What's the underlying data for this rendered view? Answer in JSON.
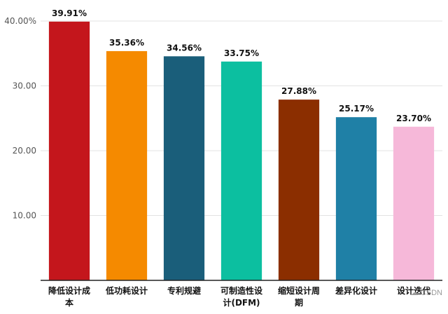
{
  "chart_data": {
    "type": "bar",
    "categories": [
      [
        "降低设计成",
        "本"
      ],
      [
        "低功耗设计"
      ],
      [
        "专利规避"
      ],
      [
        "可制造性设",
        "计(DFM)"
      ],
      [
        "缩短设计周",
        "期"
      ],
      [
        "差异化设计"
      ],
      [
        "设计迭代"
      ]
    ],
    "values": [
      39.91,
      35.36,
      34.56,
      33.75,
      27.88,
      25.17,
      23.7
    ],
    "value_labels": [
      "39.91%",
      "35.36%",
      "34.56%",
      "33.75%",
      "27.88%",
      "25.17%",
      "23.70%"
    ],
    "colors": [
      "#c4161c",
      "#f58a00",
      "#1a5e7a",
      "#0cbfa0",
      "#8b2e00",
      "#1f80a6",
      "#f6b8d9"
    ],
    "ylim": [
      0,
      40
    ],
    "yticks": [
      10,
      20,
      30,
      40
    ],
    "ytick_labels": [
      "10.00",
      "20.00",
      "30.00",
      "40.00%"
    ],
    "grid": true,
    "legend": "none"
  },
  "watermark": "CSDN"
}
